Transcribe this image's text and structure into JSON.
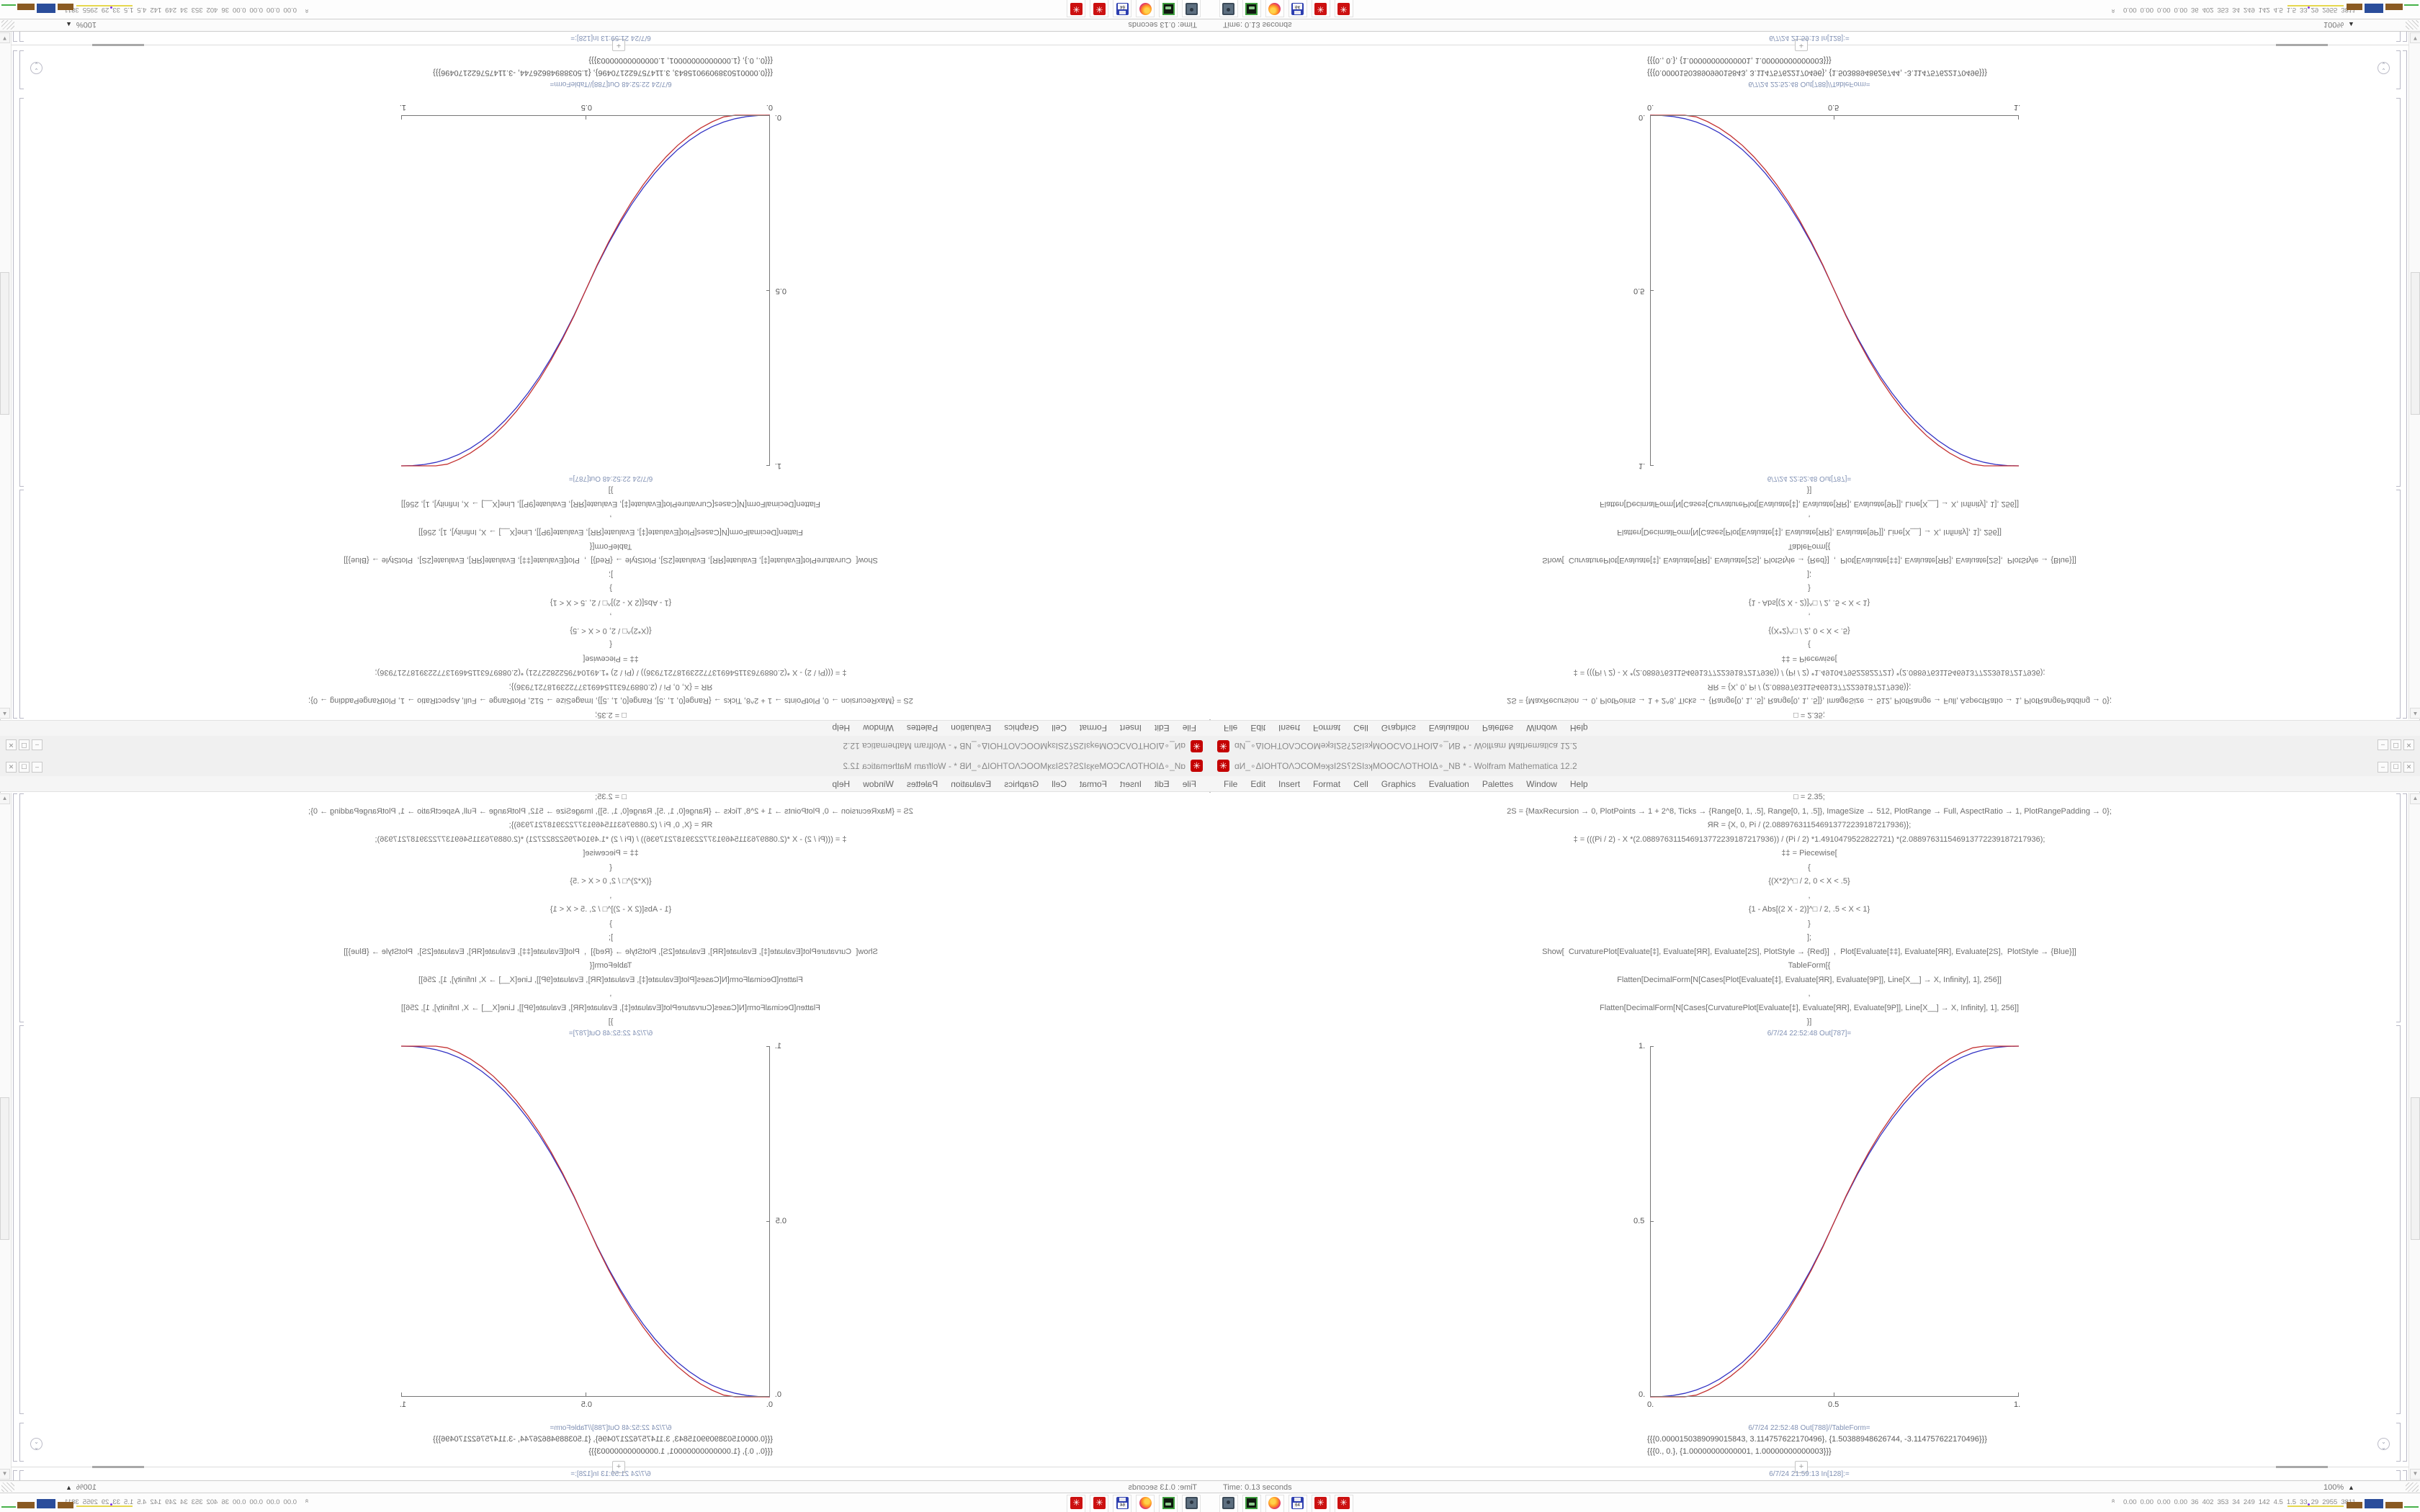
{
  "window": {
    "title": "ɑИ_∘ΔΙΟΗΤΟΛϽϹΟΜɘʞɜΙ2S⸮2SΙɜʞΜΟΟϹΛΟΤΗΟΙΔ∘_NB * - Wolfram Mathematica 12.2",
    "app_icon_glyph": "✳",
    "menu": [
      "File",
      "Edit",
      "Insert",
      "Format",
      "Cell",
      "Graphics",
      "Evaluation",
      "Palettes",
      "Window",
      "Help"
    ],
    "controls": {
      "minimize": "–",
      "maximize": "☐",
      "close": "✕"
    }
  },
  "notebook": {
    "code_lines": [
      "□ = 2.35;",
      "2S = {MaxRecursion → 0, PlotPoints → 1 + 2^8, Ticks → {Range[0, 1, .5], Range[0, 1, .5]}, ImageSize → 512, PlotRange → Full, AspectRatio → 1, PlotRangePadding → 0};",
      "ЯR = {X, 0, Pi / (2.088976311546913772239187217936)};",
      "‡ = (((Pi / 2) - X *(2.088976311546913772239187217936)) / (Pi / 2) *1.4910479522822721) *(2.088976311546913772239187217936);",
      "‡‡ = Piecewise[",
      "{",
      "{(X*2)^□ / 2, 0 < X < .5}",
      ",",
      "{1 - Abs[(2 X - 2)]^□ / 2, .5 < X < 1}",
      "}",
      "];",
      "Show[  CurvaturePlot[Evaluate[‡], Evaluate[ЯR], Evaluate[2S], PlotStyle → {Red}]  ,  Plot[Evaluate[‡‡], Evaluate[ЯR], Evaluate[2S],  PlotStyle → {Blue}]]",
      "TableForm[{",
      "Flatten[DecimalForm[N[Cases[Plot[Evaluate[‡], Evaluate[ЯR], Evaluate[9P]], Line[X__] → X, Infinity], 1], 256]]",
      ",",
      "Flatten[DecimalForm[N[Cases[CurvaturePlot[Evaluate[‡], Evaluate[ЯR], Evaluate[9P]], Line[X__] → X, Infinity], 1], 256]]",
      "}]"
    ],
    "out787_label": "6/7/24 22:52:48 Out[787]=",
    "out788_label": "6/7/24 22:52:48 Out[788]//TableForm=",
    "table_rows": [
      "{{{0.0000150389099015843, 3.114757622170496}, {1.50388948626744, -3.114757622170496}}}",
      "{{{0., 0.}, {1.00000000000001, 1.00000000000003}}}"
    ],
    "in_label": "6/7/24 21:59:13 In[128]:=",
    "insert_plus": "+"
  },
  "chart_data": {
    "type": "line",
    "title": "",
    "xlabel": "",
    "ylabel": "",
    "xlim": [
      0,
      1
    ],
    "ylim": [
      0,
      1
    ],
    "grid": false,
    "legend": "none",
    "x_ticks": [
      "0.",
      "0.5",
      "1."
    ],
    "y_ticks": [
      "0.",
      "0.5",
      "1."
    ],
    "image_size": 512,
    "x": [
      0,
      0.03125,
      0.0625,
      0.09375,
      0.125,
      0.15625,
      0.1875,
      0.21875,
      0.25,
      0.28125,
      0.3125,
      0.34375,
      0.375,
      0.40625,
      0.4375,
      0.46875,
      0.5,
      0.53125,
      0.5625,
      0.59375,
      0.625,
      0.65625,
      0.6875,
      0.71875,
      0.75,
      0.78125,
      0.8125,
      0.84375,
      0.875,
      0.90625,
      0.9375,
      0.96875,
      1
    ],
    "series": [
      {
        "name": "Plot (Blue)",
        "color": "#3333c4",
        "values": [
          0,
          0.0007,
          0.0038,
          0.0098,
          0.0192,
          0.0325,
          0.0499,
          0.0718,
          0.098,
          0.1293,
          0.1657,
          0.2073,
          0.2543,
          0.307,
          0.3654,
          0.4296,
          0.5,
          0.5704,
          0.6346,
          0.693,
          0.7457,
          0.7927,
          0.8343,
          0.8707,
          0.902,
          0.9282,
          0.9501,
          0.9675,
          0.9808,
          0.9902,
          0.9962,
          0.9993,
          1
        ]
      },
      {
        "name": "CurvaturePlot (Red)",
        "color": "#c43333",
        "values": [
          0,
          0,
          0,
          0,
          0.0048,
          0.0185,
          0.0364,
          0.0589,
          0.0859,
          0.1182,
          0.1556,
          0.1985,
          0.2469,
          0.3012,
          0.3613,
          0.4275,
          0.5,
          0.5725,
          0.6387,
          0.6988,
          0.7531,
          0.8015,
          0.8444,
          0.8818,
          0.9141,
          0.9411,
          0.9636,
          0.9815,
          0.9952,
          1,
          1,
          1,
          1
        ]
      }
    ]
  },
  "statusbar": {
    "time_text": "Time: 0.13 seconds",
    "zoom_percent": "100%"
  },
  "taskbar": {
    "icons": [
      "screenshot-tool",
      "terminal",
      "firefox",
      "floppy-64",
      "mathematica-kernel",
      "mathematica-frontend"
    ],
    "floppy_label": "64",
    "gear_glyph": "✳",
    "tray_values": [
      "0.00",
      "0.00",
      "0.00",
      "0.00",
      "36",
      "402",
      "353",
      "34",
      "249",
      "142",
      "4.5",
      "1.5",
      "33",
      "29",
      "2955",
      "3811"
    ]
  }
}
